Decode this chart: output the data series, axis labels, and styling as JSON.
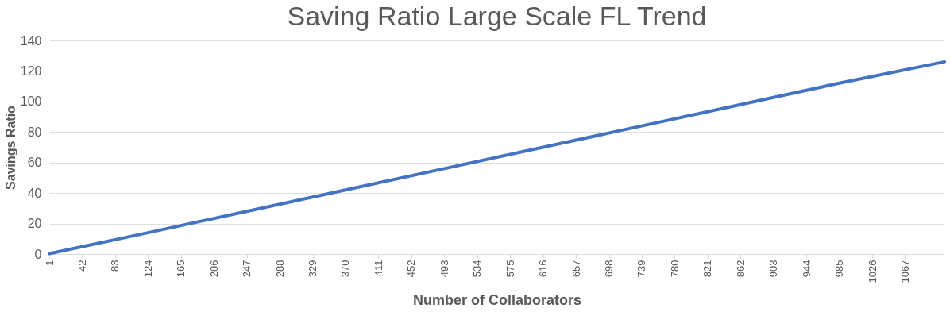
{
  "chart_data": {
    "type": "line",
    "title": "Saving Ratio Large Scale FL Trend",
    "xlabel": "Number of Collaborators",
    "ylabel": "Savings Ratio",
    "x": [
      1,
      124,
      247,
      370,
      493,
      616,
      739,
      862,
      985,
      1116
    ],
    "series": [
      {
        "color": "#4472c4",
        "values": [
          0.3,
          14,
          28,
          42,
          56,
          70,
          84,
          98,
          112,
          126
        ]
      }
    ],
    "xlim": [
      1,
      1116
    ],
    "xticks": [
      1,
      42,
      83,
      124,
      165,
      206,
      247,
      288,
      329,
      370,
      411,
      452,
      493,
      534,
      575,
      616,
      657,
      698,
      739,
      780,
      821,
      862,
      903,
      944,
      985,
      1026,
      1067
    ],
    "ylim": [
      0,
      140
    ],
    "yticks": [
      0,
      20,
      40,
      60,
      80,
      100,
      120,
      140
    ],
    "grid": "y",
    "legend": false,
    "marker": "none",
    "line_style": "solid"
  }
}
